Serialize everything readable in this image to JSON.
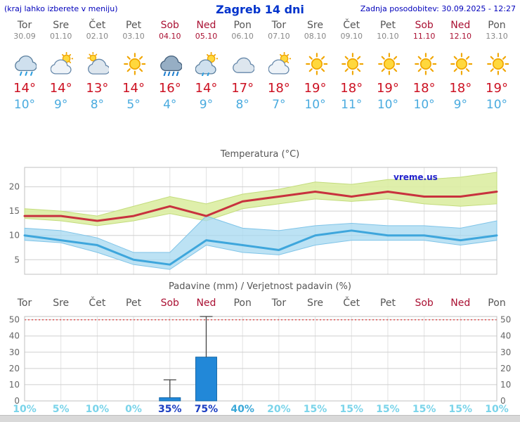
{
  "header": {
    "menu_note": "(kraj lahko izberete v meniju)",
    "title": "Zagreb 14 dni",
    "last_update": "Zadnja posodobitev: 30.09.2025 - 12:27"
  },
  "watermark": "vreme.us",
  "colors": {
    "header_blue": "#0000bb",
    "title_blue": "#0033cc",
    "weekday": "#555555",
    "weekend": "#aa1133",
    "tmax_text": "#cc1122",
    "tmin_text": "#4aabdf",
    "line_max": "#c8323e",
    "line_min": "#3ea6dc",
    "band_max": "#dceda2",
    "band_min": "#a6d8f0",
    "bar_fill": "#2288d8",
    "bar_stroke": "#1668a8",
    "threshold_red": "#e05050",
    "prob_low": "#7ad4ea",
    "prob_mid": "#3aa8d8",
    "prob_high": "#1b3ec2"
  },
  "days": [
    {
      "name": "Tor",
      "date": "30.09",
      "weekend": false,
      "icon": "rain",
      "tmax": "14°",
      "tmin": "10°",
      "prob": "10%",
      "prob_level": "low"
    },
    {
      "name": "Sre",
      "date": "01.10",
      "weekend": false,
      "icon": "sun-cloud",
      "tmax": "14°",
      "tmin": "9°",
      "prob": "5%",
      "prob_level": "low"
    },
    {
      "name": "Čet",
      "date": "02.10",
      "weekend": false,
      "icon": "cloud-sun",
      "tmax": "13°",
      "tmin": "8°",
      "prob": "10%",
      "prob_level": "low"
    },
    {
      "name": "Pet",
      "date": "03.10",
      "weekend": false,
      "icon": "sun",
      "tmax": "14°",
      "tmin": "5°",
      "prob": "0%",
      "prob_level": "low"
    },
    {
      "name": "Sob",
      "date": "04.10",
      "weekend": true,
      "icon": "heavy-rain",
      "tmax": "16°",
      "tmin": "4°",
      "prob": "35%",
      "prob_level": "high"
    },
    {
      "name": "Ned",
      "date": "05.10",
      "weekend": true,
      "icon": "rain-sun",
      "tmax": "14°",
      "tmin": "9°",
      "prob": "75%",
      "prob_level": "high"
    },
    {
      "name": "Pon",
      "date": "06.10",
      "weekend": false,
      "icon": "cloudy",
      "tmax": "17°",
      "tmin": "8°",
      "prob": "40%",
      "prob_level": "mid"
    },
    {
      "name": "Tor",
      "date": "07.10",
      "weekend": false,
      "icon": "sun-cloud",
      "tmax": "18°",
      "tmin": "7°",
      "prob": "20%",
      "prob_level": "low"
    },
    {
      "name": "Sre",
      "date": "08.10",
      "weekend": false,
      "icon": "sun",
      "tmax": "19°",
      "tmin": "10°",
      "prob": "15%",
      "prob_level": "low"
    },
    {
      "name": "Čet",
      "date": "09.10",
      "weekend": false,
      "icon": "sun",
      "tmax": "18°",
      "tmin": "11°",
      "prob": "15%",
      "prob_level": "low"
    },
    {
      "name": "Pet",
      "date": "10.10",
      "weekend": false,
      "icon": "sun",
      "tmax": "19°",
      "tmin": "10°",
      "prob": "15%",
      "prob_level": "low"
    },
    {
      "name": "Sob",
      "date": "11.10",
      "weekend": true,
      "icon": "sun",
      "tmax": "18°",
      "tmin": "10°",
      "prob": "15%",
      "prob_level": "low"
    },
    {
      "name": "Ned",
      "date": "12.10",
      "weekend": true,
      "icon": "sun",
      "tmax": "18°",
      "tmin": "9°",
      "prob": "15%",
      "prob_level": "low"
    },
    {
      "name": "Pon",
      "date": "13.10",
      "weekend": false,
      "icon": "sun",
      "tmax": "19°",
      "tmin": "10°",
      "prob": "10%",
      "prob_level": "low"
    }
  ],
  "chart_data": [
    {
      "type": "line",
      "title": "Temperatura (°C)",
      "x": [
        "Tor",
        "Sre",
        "Čet",
        "Pet",
        "Sob",
        "Ned",
        "Pon",
        "Tor",
        "Sre",
        "Čet",
        "Pet",
        "Sob",
        "Ned",
        "Pon"
      ],
      "ylim": [
        2,
        24
      ],
      "yticks": [
        5,
        10,
        15,
        20
      ],
      "grid": true,
      "legend": "none",
      "series": [
        {
          "name": "tmax",
          "color": "#c8323e",
          "values": [
            14,
            14,
            13,
            14,
            16,
            14,
            17,
            18,
            19,
            18,
            19,
            18,
            18,
            19
          ]
        },
        {
          "name": "tmax_band_upper",
          "values": [
            15.5,
            15,
            14,
            16,
            18,
            16.5,
            18.5,
            19.5,
            21,
            20.5,
            21.5,
            21.5,
            22,
            23
          ]
        },
        {
          "name": "tmax_band_lower",
          "values": [
            13.5,
            13,
            12,
            13,
            14.5,
            13,
            15.5,
            16.5,
            17.5,
            17,
            17.5,
            16.5,
            16,
            16.5
          ]
        },
        {
          "name": "tmin",
          "color": "#3ea6dc",
          "values": [
            10,
            9,
            8,
            5,
            4,
            9,
            8,
            7,
            10,
            11,
            10,
            10,
            9,
            10
          ]
        },
        {
          "name": "tmin_band_upper",
          "values": [
            11.5,
            11,
            9.5,
            6.5,
            6.5,
            14,
            11.5,
            11,
            12,
            12.5,
            12,
            12,
            11.5,
            13
          ]
        },
        {
          "name": "tmin_band_lower",
          "values": [
            9,
            8.5,
            6.5,
            4,
            3,
            8,
            6.5,
            6,
            8,
            9,
            9,
            9,
            8,
            9
          ]
        }
      ]
    },
    {
      "type": "bar",
      "title": "Padavine (mm) / Verjetnost padavin (%)",
      "categories": [
        "Tor",
        "Sre",
        "Čet",
        "Pet",
        "Sob",
        "Ned",
        "Pon",
        "Tor",
        "Sre",
        "Čet",
        "Pet",
        "Sob",
        "Ned",
        "Pon"
      ],
      "values": [
        0,
        0,
        0,
        0,
        2,
        27,
        0,
        0,
        0,
        0,
        0,
        0,
        0,
        0
      ],
      "whisker_max": [
        0,
        0,
        0,
        0,
        13,
        52,
        0,
        0,
        0,
        0,
        0,
        0,
        0,
        0
      ],
      "probabilities": [
        "10%",
        "5%",
        "10%",
        "0%",
        "35%",
        "75%",
        "40%",
        "20%",
        "15%",
        "15%",
        "15%",
        "15%",
        "15%",
        "10%"
      ],
      "ylim": [
        0,
        52
      ],
      "yticks": [
        0,
        10,
        20,
        30,
        40,
        50
      ],
      "threshold_line": 50,
      "grid": true
    }
  ]
}
